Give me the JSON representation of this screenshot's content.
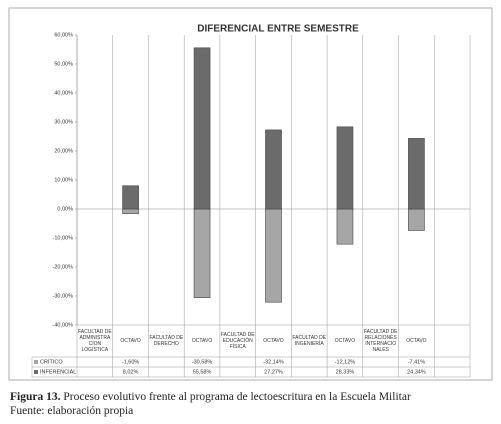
{
  "chart_data": {
    "type": "bar",
    "stacked": true,
    "title": "DIFERENCIAL ENTRE SEMESTRE",
    "categories": [
      "FACULTAD DE ADMINISTRACION LOGÍSTICA",
      "OCTAVO",
      "FACULTAD DE DERECHO",
      "OCTAVO",
      "FACULTAD DE EDUCACIÓN FÍSICA",
      "OCTAVO",
      "FACULTAD DE INGENIERÍA",
      "OCTAVO",
      "FACULTAD DE RELACIONES INTERNACIONALES",
      "OCTAVO",
      null
    ],
    "series": [
      {
        "name": "CRÍTICO",
        "color": "#a6a6a6",
        "values": [
          null,
          -1.6,
          null,
          -30.58,
          null,
          -32.14,
          null,
          -12.12,
          null,
          -7.41,
          null
        ],
        "value_labels": [
          null,
          "-1,60%",
          null,
          "-30,58%",
          null,
          "-32,14%",
          null,
          "-12,12%",
          null,
          "-7,41%",
          null
        ]
      },
      {
        "name": "INFERENCIAL",
        "color": "#6b6b6b",
        "values": [
          null,
          8.02,
          null,
          55.58,
          null,
          27.27,
          null,
          28.33,
          null,
          24.34,
          null
        ],
        "value_labels": [
          null,
          "8,02%",
          null,
          "55,58%",
          null,
          "27,27%",
          null,
          "28,33%",
          null,
          "24,34%",
          null
        ]
      }
    ],
    "ylim": [
      -40,
      60
    ],
    "yticks": [
      {
        "value": -40,
        "label": "-40,00%"
      },
      {
        "value": -30,
        "label": "-30,00%"
      },
      {
        "value": -20,
        "label": "-20,00%"
      },
      {
        "value": -10,
        "label": "-10,00%"
      },
      {
        "value": 0,
        "label": "0,00%"
      },
      {
        "value": 10,
        "label": "10,00%"
      },
      {
        "value": 20,
        "label": "20,00%"
      },
      {
        "value": 30,
        "label": "30,00%"
      },
      {
        "value": 40,
        "label": "40,00%"
      },
      {
        "value": 50,
        "label": "50,00%"
      },
      {
        "value": 60,
        "label": "60,00%"
      }
    ],
    "grid": false
  },
  "caption": {
    "label": "Figura 13.",
    "text": "Proceso evolutivo frente al programa de lectoescritura en la Escuela Militar",
    "source": "Fuente: elaboración propia"
  }
}
